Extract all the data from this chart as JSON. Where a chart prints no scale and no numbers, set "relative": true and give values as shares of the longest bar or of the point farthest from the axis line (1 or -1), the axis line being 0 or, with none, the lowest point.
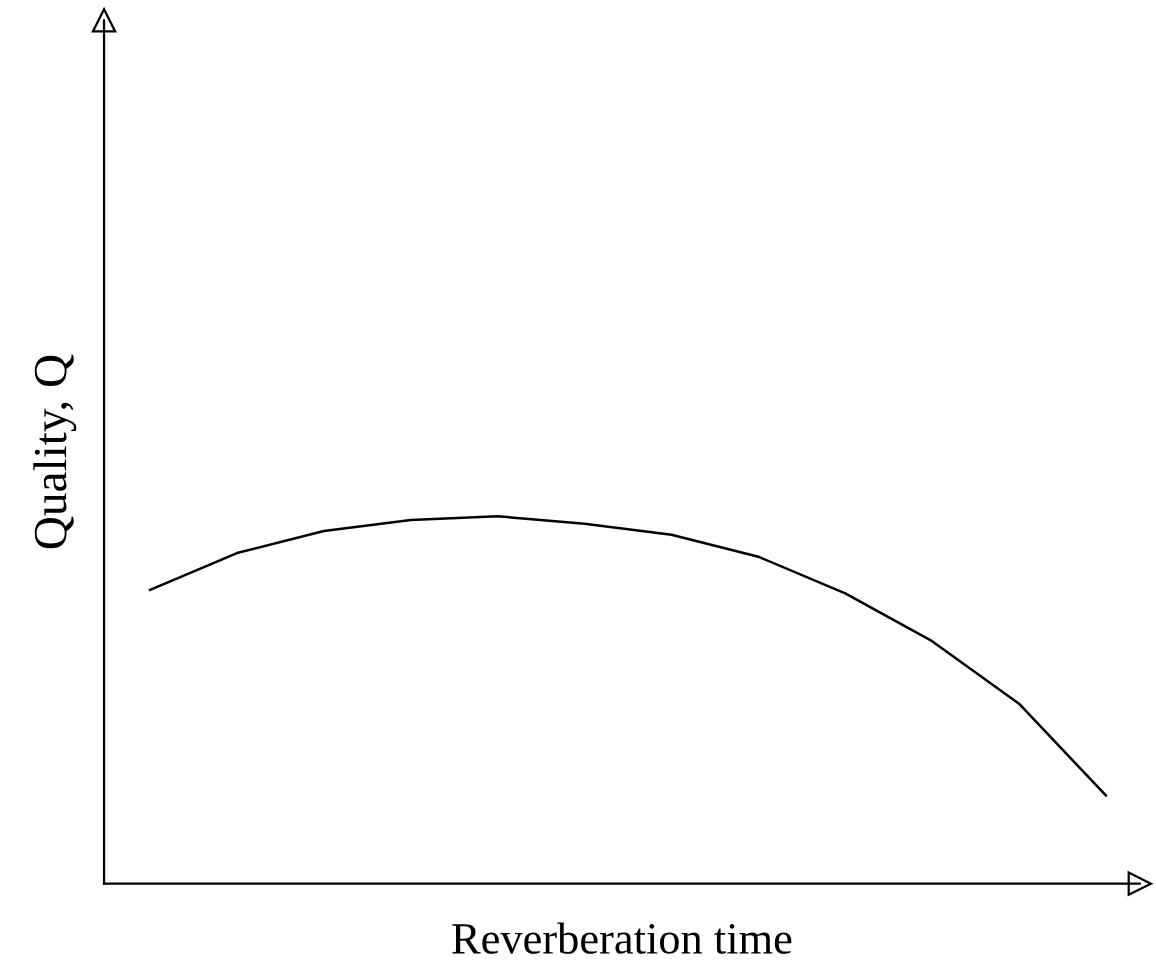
{
  "chart_data": {
    "type": "line",
    "relative": true,
    "xlabel": "Reverberation time",
    "ylabel": "Quality, Q",
    "categories": [
      null,
      null,
      null,
      null,
      null,
      null,
      null,
      null,
      null,
      null,
      null,
      null
    ],
    "series": [
      {
        "color": "#000000",
        "values": [
          0.8,
          0.9,
          0.96,
          0.99,
          1.0,
          0.98,
          0.95,
          0.89,
          0.79,
          0.66,
          0.49,
          0.24
        ]
      }
    ],
    "legend": false,
    "marker": "none",
    "line_style": "solid"
  }
}
